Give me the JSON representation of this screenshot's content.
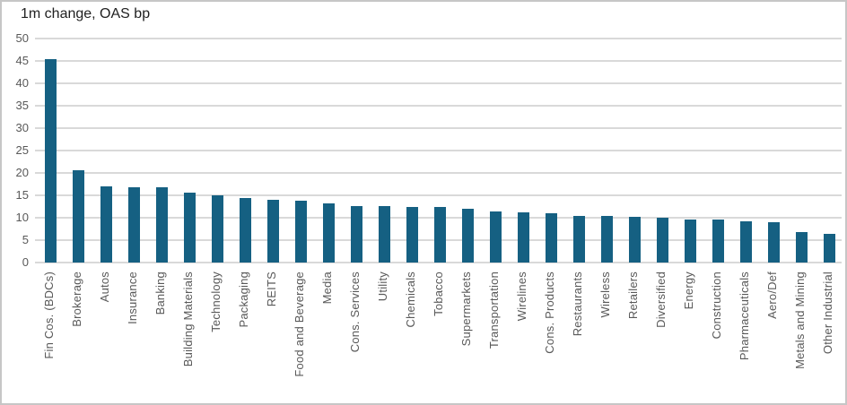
{
  "window": {
    "background": "#ffffff",
    "frame_border_color": "#c6c6c6"
  },
  "chart_data": {
    "type": "bar",
    "title": "1m change, OAS bp",
    "categories": [
      "Fin Cos. (BDCs)",
      "Brokerage",
      "Autos",
      "Insurance",
      "Banking",
      "Building Materials",
      "Technology",
      "Packaging",
      "REITS",
      "Food and Beverage",
      "Media",
      "Cons. Services",
      "Utility",
      "Chemicals",
      "Tobacco",
      "Supermarkets",
      "Transportation",
      "Wirelines",
      "Cons. Products",
      "Restaurants",
      "Wireless",
      "Retailers",
      "Diversified",
      "Energy",
      "Construction",
      "Pharmaceuticals",
      "Aero/Def",
      "Metals and Mining",
      "Other Industrial"
    ],
    "values": [
      45.5,
      20.6,
      17.1,
      16.9,
      16.8,
      15.6,
      15.0,
      14.4,
      14.0,
      13.8,
      13.3,
      12.7,
      12.7,
      12.4,
      12.4,
      12.0,
      11.5,
      11.2,
      11.0,
      10.5,
      10.5,
      10.2,
      10.1,
      9.7,
      9.7,
      9.3,
      9.1,
      6.9,
      6.4
    ],
    "xlabel": "",
    "ylabel": "",
    "ylim": [
      0,
      50
    ],
    "yticks": [
      0,
      5,
      10,
      15,
      20,
      25,
      30,
      35,
      40,
      45,
      50
    ],
    "grid": "horizontal",
    "legend_position": "none",
    "bar_color": "#156082",
    "gridline_color": "#d9d9d9",
    "axis_label_color": "#595959",
    "title_color": "#212121"
  }
}
